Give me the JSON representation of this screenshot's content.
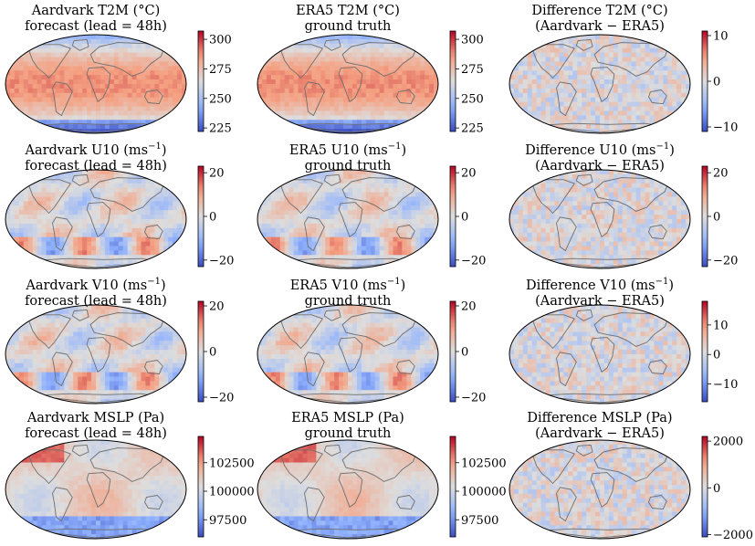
{
  "chart_data": [
    {
      "type": "heatmap",
      "id": "t2m-forecast",
      "title": {
        "main": "Aardvark T2M (°C)",
        "sub": "forecast (lead = 48h)"
      },
      "colorbar": {
        "ticks": [
          225,
          250,
          275,
          300
        ],
        "range": [
          222,
          307
        ],
        "cmap": "coolwarm"
      },
      "field": "t2m"
    },
    {
      "type": "heatmap",
      "id": "t2m-truth",
      "title": {
        "main": "ERA5 T2M (°C)",
        "sub": "ground truth"
      },
      "colorbar": {
        "ticks": [
          225,
          250,
          275,
          300
        ],
        "range": [
          222,
          307
        ],
        "cmap": "coolwarm"
      },
      "field": "t2m"
    },
    {
      "type": "heatmap",
      "id": "t2m-diff",
      "title": {
        "main": "Difference T2M (°C)",
        "sub": "(Aardvark − ERA5)"
      },
      "colorbar": {
        "ticks": [
          10,
          0,
          -10
        ],
        "range": [
          -11,
          11
        ],
        "cmap": "coolwarm"
      },
      "field": "diff"
    },
    {
      "type": "heatmap",
      "id": "u10-forecast",
      "title": {
        "main": "Aardvark U10 (ms",
        "unit_exp": "−1",
        "unit_close": ")",
        "sub": "forecast (lead = 48h)"
      },
      "colorbar": {
        "ticks": [
          20,
          0,
          -20
        ],
        "range": [
          -23,
          23
        ],
        "cmap": "coolwarm"
      },
      "field": "wind"
    },
    {
      "type": "heatmap",
      "id": "u10-truth",
      "title": {
        "main": "ERA5 U10 (ms",
        "unit_exp": "−1",
        "unit_close": ")",
        "sub": "ground truth"
      },
      "colorbar": {
        "ticks": [
          20,
          0,
          -20
        ],
        "range": [
          -23,
          23
        ],
        "cmap": "coolwarm"
      },
      "field": "wind"
    },
    {
      "type": "heatmap",
      "id": "u10-diff",
      "title": {
        "main": "Difference U10 (ms",
        "unit_exp": "−1",
        "unit_close": ")",
        "sub": "(Aardvark − ERA5)"
      },
      "colorbar": {
        "ticks": [
          20,
          0,
          -20
        ],
        "range": [
          -23,
          23
        ],
        "cmap": "coolwarm"
      },
      "field": "diff"
    },
    {
      "type": "heatmap",
      "id": "v10-forecast",
      "title": {
        "main": "Aardvark V10 (ms",
        "unit_exp": "−1",
        "unit_close": ")",
        "sub": "forecast (lead = 48h)"
      },
      "colorbar": {
        "ticks": [
          20,
          0,
          -20
        ],
        "range": [
          -22,
          22
        ],
        "cmap": "coolwarm"
      },
      "field": "wind"
    },
    {
      "type": "heatmap",
      "id": "v10-truth",
      "title": {
        "main": "ERA5 V10 (ms",
        "unit_exp": "−1",
        "unit_close": ")",
        "sub": "ground truth"
      },
      "colorbar": {
        "ticks": [
          20,
          0,
          -20
        ],
        "range": [
          -22,
          22
        ],
        "cmap": "coolwarm"
      },
      "field": "wind"
    },
    {
      "type": "heatmap",
      "id": "v10-diff",
      "title": {
        "main": "Difference V10 (ms",
        "unit_exp": "−1",
        "unit_close": ")",
        "sub": "(Aardvark − ERA5)"
      },
      "colorbar": {
        "ticks": [
          10,
          0,
          -10
        ],
        "range": [
          -16,
          18
        ],
        "cmap": "coolwarm"
      },
      "field": "diff"
    },
    {
      "type": "heatmap",
      "id": "mslp-forecast",
      "title": {
        "main": "Aardvark MSLP (Pa)",
        "sub": "forecast (lead = 48h)"
      },
      "colorbar": {
        "ticks": [
          102500,
          100000,
          97500
        ],
        "range": [
          96000,
          104800
        ],
        "cmap": "coolwarm"
      },
      "field": "mslp"
    },
    {
      "type": "heatmap",
      "id": "mslp-truth",
      "title": {
        "main": "ERA5 MSLP (Pa)",
        "sub": "ground truth"
      },
      "colorbar": {
        "ticks": [
          102500,
          100000,
          97500
        ],
        "range": [
          96000,
          104800
        ],
        "cmap": "coolwarm"
      },
      "field": "mslp"
    },
    {
      "type": "heatmap",
      "id": "mslp-diff",
      "title": {
        "main": "Difference MSLP (Pa)",
        "sub": "(Aardvark − ERA5)"
      },
      "colorbar": {
        "ticks": [
          2000,
          0,
          -2000
        ],
        "range": [
          -2100,
          2200
        ],
        "cmap": "coolwarm"
      },
      "field": "diff"
    }
  ]
}
